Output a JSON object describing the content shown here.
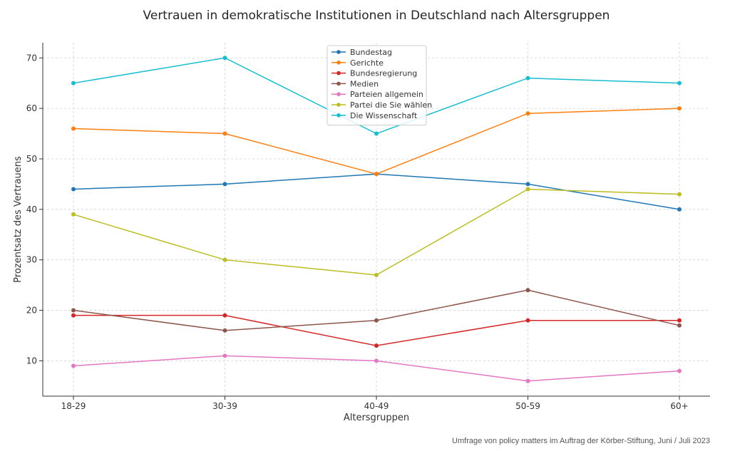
{
  "chart_data": {
    "type": "line",
    "title": "Vertrauen in demokratische Institutionen in Deutschland nach Altersgruppen",
    "xlabel": "Altersgruppen",
    "ylabel": "Prozentsatz des Vertrauens",
    "categories": [
      "18-29",
      "30-39",
      "40-49",
      "50-59",
      "60+"
    ],
    "ylim": [
      3,
      73
    ],
    "yticks": [
      10,
      20,
      30,
      40,
      50,
      60,
      70
    ],
    "grid": true,
    "legend_position": "top-center",
    "series": [
      {
        "name": "Bundestag",
        "color": "#1f77b4",
        "values": [
          44,
          45,
          47,
          45,
          40
        ]
      },
      {
        "name": "Gerichte",
        "color": "#ff7f0e",
        "values": [
          56,
          55,
          47,
          59,
          60
        ]
      },
      {
        "name": "Bundesregierung",
        "color": "#d62728",
        "values": [
          19,
          19,
          13,
          18,
          18
        ]
      },
      {
        "name": "Medien",
        "color": "#8c564b",
        "values": [
          20,
          16,
          18,
          24,
          17
        ]
      },
      {
        "name": "Parteien allgemein",
        "color": "#e377c2",
        "values": [
          9,
          11,
          10,
          6,
          8
        ]
      },
      {
        "name": "Partei die Sie wählen",
        "color": "#bcbd22",
        "values": [
          39,
          30,
          27,
          44,
          43
        ]
      },
      {
        "name": "Die Wissenschaft",
        "color": "#17becf",
        "values": [
          65,
          70,
          55,
          66,
          65
        ]
      }
    ],
    "source_note": "Umfrage von policy matters im Auftrag der Körber-Stiftung, Juni / Juli 2023"
  }
}
